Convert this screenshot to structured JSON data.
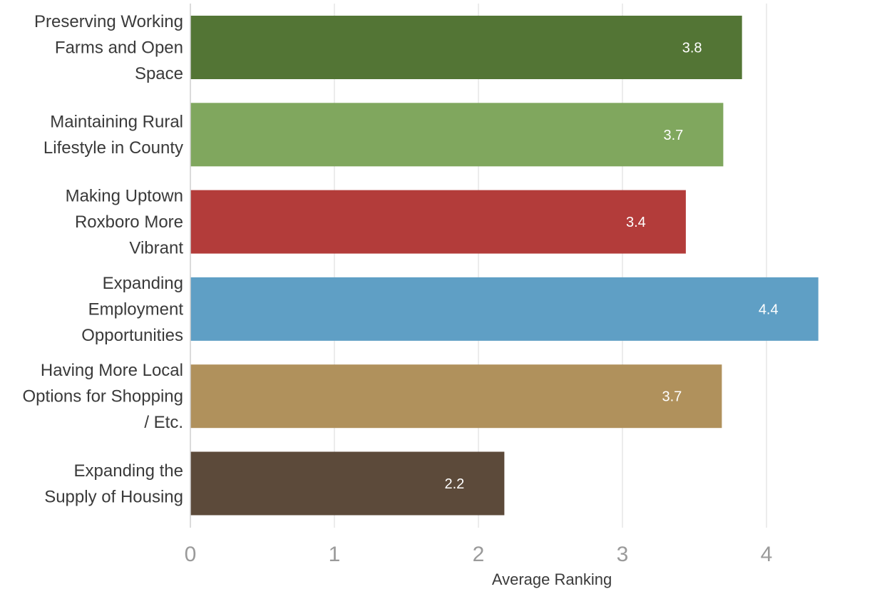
{
  "chart_data": {
    "type": "bar",
    "orientation": "horizontal",
    "categories": [
      [
        "Preserving Working",
        "Farms and Open",
        "Space"
      ],
      [
        "Maintaining Rural",
        "Lifestyle in County"
      ],
      [
        "Making Uptown",
        "Roxboro More",
        "Vibrant"
      ],
      [
        "Expanding",
        "Employment",
        "Opportunities"
      ],
      [
        "Having More Local",
        "Options for Shopping",
        "/ Etc."
      ],
      [
        "Expanding the",
        "Supply of Housing"
      ]
    ],
    "values": [
      3.83,
      3.7,
      3.44,
      4.36,
      3.69,
      2.18
    ],
    "value_labels": [
      "3.8",
      "3.7",
      "3.4",
      "4.4",
      "3.7",
      "2.2"
    ],
    "colors": [
      "#537535",
      "#80a75e",
      "#b33c3a",
      "#5f9fc5",
      "#b0915c",
      "#5c4a3a"
    ],
    "xlabel": "Average Ranking",
    "ylabel": "",
    "xlim": [
      0,
      4.8
    ],
    "xticks": [
      0,
      1,
      2,
      3,
      4
    ],
    "tick_labels": [
      "0",
      "1",
      "2",
      "3",
      "4"
    ],
    "grid": "vertical",
    "legend": "none"
  }
}
